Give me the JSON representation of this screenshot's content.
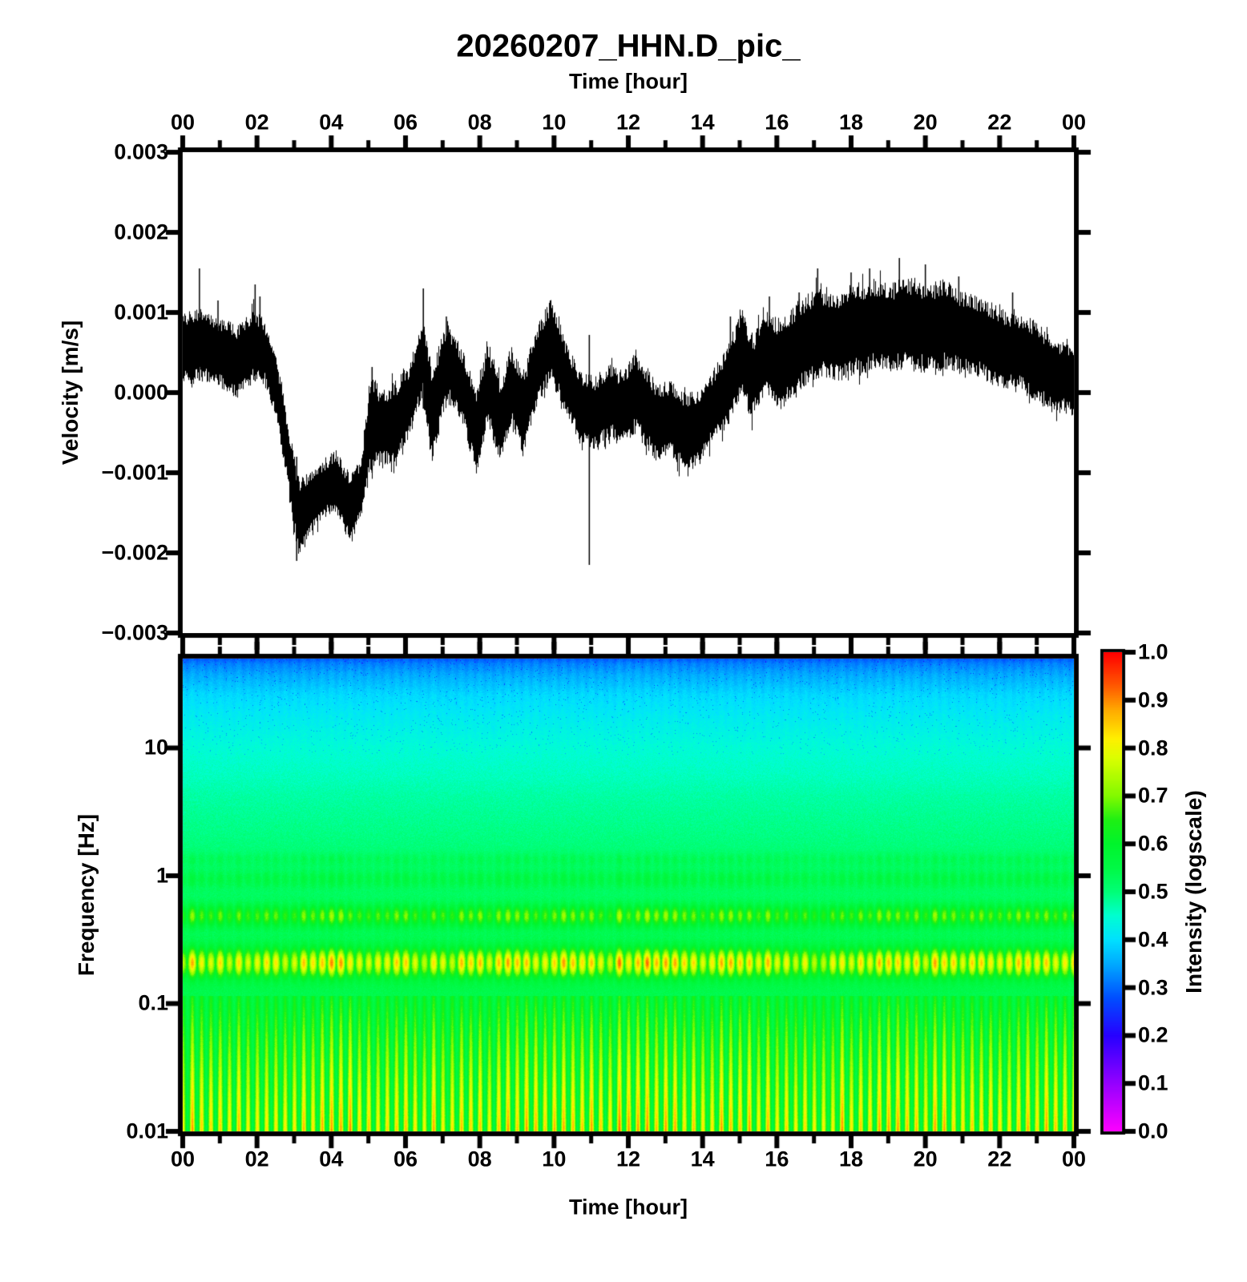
{
  "title": "20260207_HHN.D_pic_",
  "top_axis": {
    "label": "Time [hour]",
    "tick_labels": [
      "00",
      "02",
      "04",
      "06",
      "08",
      "10",
      "12",
      "14",
      "16",
      "18",
      "20",
      "22",
      "00"
    ],
    "tick_hours": [
      0,
      2,
      4,
      6,
      8,
      10,
      12,
      14,
      16,
      18,
      20,
      22,
      24
    ]
  },
  "waveform_panel": {
    "ylabel": "Velocity [m/s]",
    "ytick_labels": [
      "0.003",
      "0.002",
      "0.001",
      "0.000",
      "−0.001",
      "−0.002",
      "−0.003"
    ],
    "ytick_values": [
      0.003,
      0.002,
      0.001,
      0.0,
      -0.001,
      -0.002,
      -0.003
    ]
  },
  "spectrogram_panel": {
    "ylabel": "Frequency [Hz]",
    "xlabel": "Time [hour]",
    "ytick_labels": [
      "10",
      "1",
      "0.1",
      "0.01"
    ],
    "ytick_values": [
      10,
      1,
      0.1,
      0.01
    ],
    "xtick_labels": [
      "00",
      "02",
      "04",
      "06",
      "08",
      "10",
      "12",
      "14",
      "16",
      "18",
      "20",
      "22",
      "00"
    ]
  },
  "colorbar": {
    "label": "Intensity (logscale)",
    "tick_labels": [
      "1.0",
      "0.9",
      "0.8",
      "0.7",
      "0.6",
      "0.5",
      "0.4",
      "0.3",
      "0.2",
      "0.1",
      "0.0"
    ],
    "tick_values": [
      1.0,
      0.9,
      0.8,
      0.7,
      0.6,
      0.5,
      0.4,
      0.3,
      0.2,
      0.1,
      0.0
    ]
  },
  "chart_data": [
    {
      "type": "line",
      "name": "seismic-waveform",
      "title": "20260207_HHN.D_pic_",
      "xlabel": "Time [hour]",
      "ylabel": "Velocity [m/s]",
      "xlim_hours": [
        0,
        24
      ],
      "ylim": [
        -0.003,
        0.003
      ],
      "color": "#000000",
      "units_note": "envelope values in 1e-3 m/s: [hour, band_center, band_halfwidth]",
      "envelope": [
        [
          0.0,
          0.55,
          0.42
        ],
        [
          0.5,
          0.6,
          0.4
        ],
        [
          1.0,
          0.5,
          0.38
        ],
        [
          1.45,
          0.38,
          0.42
        ],
        [
          1.9,
          0.6,
          0.4
        ],
        [
          2.2,
          0.5,
          0.35
        ],
        [
          2.5,
          0.1,
          0.35
        ],
        [
          2.8,
          -0.7,
          0.35
        ],
        [
          3.1,
          -1.55,
          0.45
        ],
        [
          3.3,
          -1.45,
          0.35
        ],
        [
          3.7,
          -1.25,
          0.3
        ],
        [
          4.1,
          -1.1,
          0.35
        ],
        [
          4.5,
          -1.45,
          0.38
        ],
        [
          4.8,
          -1.2,
          0.35
        ],
        [
          5.05,
          -0.35,
          0.55
        ],
        [
          5.35,
          -0.45,
          0.4
        ],
        [
          5.75,
          -0.35,
          0.45
        ],
        [
          6.1,
          -0.1,
          0.4
        ],
        [
          6.45,
          0.45,
          0.45
        ],
        [
          6.7,
          -0.3,
          0.55
        ],
        [
          7.1,
          0.4,
          0.45
        ],
        [
          7.5,
          0.1,
          0.4
        ],
        [
          7.9,
          -0.45,
          0.5
        ],
        [
          8.2,
          0.1,
          0.45
        ],
        [
          8.55,
          -0.35,
          0.45
        ],
        [
          8.85,
          0.1,
          0.45
        ],
        [
          9.15,
          -0.3,
          0.45
        ],
        [
          9.5,
          0.3,
          0.45
        ],
        [
          9.9,
          0.65,
          0.45
        ],
        [
          10.3,
          0.2,
          0.4
        ],
        [
          10.7,
          -0.2,
          0.4
        ],
        [
          11.1,
          -0.25,
          0.4
        ],
        [
          11.5,
          -0.1,
          0.4
        ],
        [
          11.8,
          -0.2,
          0.4
        ],
        [
          12.2,
          0.0,
          0.45
        ],
        [
          12.5,
          -0.2,
          0.45
        ],
        [
          12.8,
          -0.4,
          0.45
        ],
        [
          13.1,
          -0.3,
          0.4
        ],
        [
          13.5,
          -0.5,
          0.45
        ],
        [
          13.9,
          -0.45,
          0.4
        ],
        [
          14.3,
          -0.15,
          0.4
        ],
        [
          14.7,
          0.1,
          0.45
        ],
        [
          15.05,
          0.55,
          0.5
        ],
        [
          15.3,
          0.15,
          0.45
        ],
        [
          15.7,
          0.5,
          0.45
        ],
        [
          16.1,
          0.35,
          0.5
        ],
        [
          16.6,
          0.6,
          0.5
        ],
        [
          17.1,
          0.75,
          0.5
        ],
        [
          17.6,
          0.7,
          0.5
        ],
        [
          18.1,
          0.8,
          0.5
        ],
        [
          18.6,
          0.85,
          0.5
        ],
        [
          19.1,
          0.8,
          0.5
        ],
        [
          19.5,
          0.9,
          0.5
        ],
        [
          20.0,
          0.8,
          0.5
        ],
        [
          20.5,
          0.85,
          0.5
        ],
        [
          21.0,
          0.75,
          0.45
        ],
        [
          21.5,
          0.7,
          0.45
        ],
        [
          22.0,
          0.55,
          0.45
        ],
        [
          22.5,
          0.5,
          0.4
        ],
        [
          23.0,
          0.4,
          0.45
        ],
        [
          23.4,
          0.2,
          0.4
        ],
        [
          23.8,
          0.2,
          0.4
        ],
        [
          24.0,
          0.1,
          0.35
        ]
      ],
      "spikes_note": "[hour, top, bottom] in 1e-3 m/s",
      "spikes": [
        [
          0.45,
          1.55,
          0.15
        ],
        [
          0.95,
          1.15,
          0.2
        ],
        [
          1.95,
          1.35,
          0.15
        ],
        [
          2.08,
          1.2,
          0.2
        ],
        [
          3.07,
          -0.8,
          -2.1
        ],
        [
          5.1,
          0.32,
          -1.0
        ],
        [
          6.48,
          1.3,
          -0.2
        ],
        [
          7.1,
          0.95,
          -0.1
        ],
        [
          9.9,
          1.15,
          0.2
        ],
        [
          10.95,
          0.72,
          -2.15
        ],
        [
          14.75,
          0.95,
          -0.2
        ],
        [
          15.8,
          1.2,
          0.1
        ],
        [
          16.6,
          1.25,
          0.2
        ],
        [
          17.1,
          1.55,
          0.3
        ],
        [
          18.0,
          1.5,
          0.3
        ],
        [
          18.5,
          1.55,
          0.3
        ],
        [
          19.3,
          1.68,
          0.35
        ],
        [
          20.0,
          1.6,
          0.3
        ],
        [
          20.9,
          1.45,
          0.3
        ],
        [
          22.35,
          1.25,
          0.15
        ]
      ]
    },
    {
      "type": "heatmap",
      "name": "spectrogram",
      "xlabel": "Time [hour]",
      "ylabel": "Frequency [Hz]",
      "xlim_hours": [
        0,
        24
      ],
      "freq_range_hz": [
        0.01,
        50
      ],
      "freq_scale": "log",
      "intensity_range": [
        0.0,
        1.0
      ],
      "stripe_period_hours": 0.25,
      "base_profile_note": "[y_fraction_from_top, intensity] background intensity vs height",
      "base_profile": [
        [
          0.0,
          0.27
        ],
        [
          0.01,
          0.3
        ],
        [
          0.034,
          0.335
        ],
        [
          0.076,
          0.38
        ],
        [
          0.119,
          0.405
        ],
        [
          0.188,
          0.44
        ],
        [
          0.288,
          0.475
        ],
        [
          0.459,
          0.515
        ],
        [
          0.61,
          0.535
        ],
        [
          0.729,
          0.545
        ],
        [
          0.881,
          0.552
        ],
        [
          1.0,
          0.555
        ]
      ],
      "stripe_rows_note": "bright dotted/blobby rows: [freq_hz, amp, sigma_y_px]",
      "stripe_rows": [
        [
          1.35,
          0.035,
          6
        ],
        [
          0.95,
          0.05,
          8
        ],
        [
          0.49,
          0.17,
          9
        ],
        [
          0.21,
          0.3,
          12
        ]
      ],
      "low_band_note": "thin bright vertical lines below this freq ramping brighter to bottom",
      "low_band": {
        "freq_top_hz": 0.115,
        "amp_top": 0.1,
        "amp_bottom": 0.32
      },
      "strength_bumps_note": "extra stripe strength vs hour: [center_hour, amp, width_hours]",
      "strength_bumps": [
        [
          4.1,
          0.1,
          1.3
        ],
        [
          12.3,
          0.12,
          1.8
        ],
        [
          19.5,
          0.05,
          2.2
        ]
      ],
      "colormap_stops": [
        [
          0.0,
          "#FF00FF"
        ],
        [
          0.1,
          "#9600FF"
        ],
        [
          0.2,
          "#2800FF"
        ],
        [
          0.28,
          "#0050FF"
        ],
        [
          0.35,
          "#00AAFF"
        ],
        [
          0.4,
          "#00E1FF"
        ],
        [
          0.45,
          "#00FFD2"
        ],
        [
          0.5,
          "#00FF78"
        ],
        [
          0.55,
          "#00FA46"
        ],
        [
          0.6,
          "#00F52D"
        ],
        [
          0.65,
          "#1EF014"
        ],
        [
          0.7,
          "#82FA00"
        ],
        [
          0.78,
          "#DCFF00"
        ],
        [
          0.82,
          "#FFF000"
        ],
        [
          0.88,
          "#FFAA00"
        ],
        [
          0.93,
          "#FF5A00"
        ],
        [
          1.0,
          "#FF0000"
        ]
      ],
      "colorbar_label": "Intensity (logscale)"
    }
  ]
}
